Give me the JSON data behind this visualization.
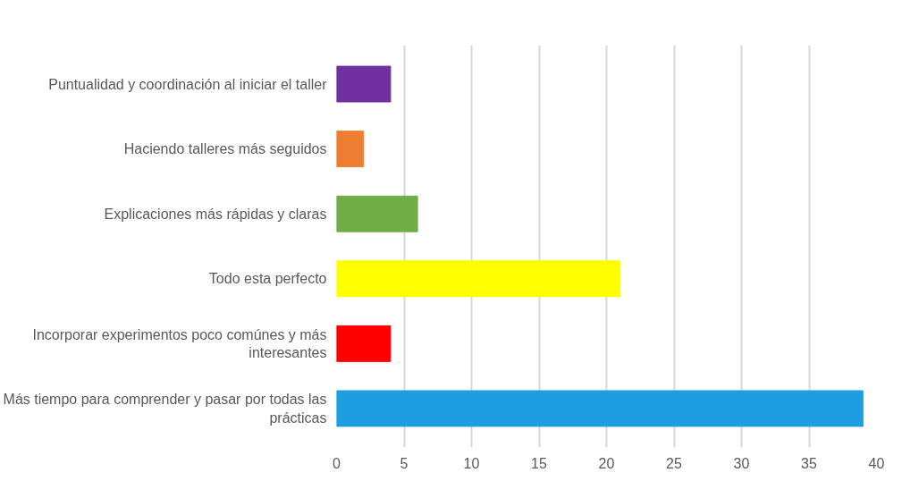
{
  "chart_data": {
    "type": "bar",
    "orientation": "horizontal",
    "categories": [
      "Puntualidad y coordinación al iniciar el taller",
      "Haciendo talleres más seguidos",
      "Explicaciones más rápidas y claras",
      "Todo esta perfecto",
      "Incorporar experimentos poco comúnes y más interesantes",
      "Más tiempo para comprender y pasar por todas las prácticas"
    ],
    "values": [
      4,
      2,
      6,
      21,
      4,
      39
    ],
    "colors": [
      "#7030a0",
      "#ed7d31",
      "#70ad47",
      "#ffff00",
      "#ff0000",
      "#1e9ee0"
    ],
    "xlim": [
      0,
      40
    ],
    "xticks": [
      0,
      5,
      10,
      15,
      20,
      25,
      30,
      35,
      40
    ],
    "grid": "x"
  }
}
